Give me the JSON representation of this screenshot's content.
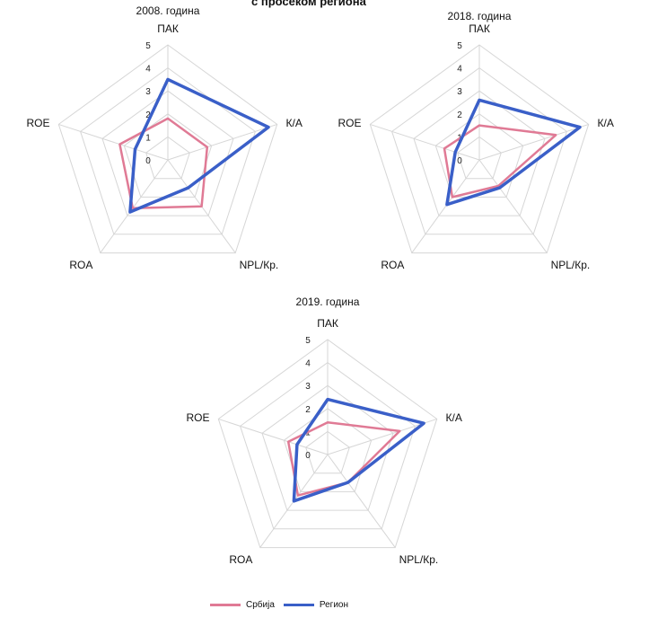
{
  "figure": {
    "title_fragment": "с просеком региона"
  },
  "colors": {
    "serbia": "#e07a95",
    "region": "#3a5fc8",
    "grid": "#d6d6d6"
  },
  "legend": {
    "serbia_label": "Србија",
    "region_label": "Регион"
  },
  "chart_data": [
    {
      "type": "radar",
      "title": "2008. година",
      "axes": [
        "ПАК",
        "К/А",
        "NPL/Кр.",
        "ROA",
        "ROE"
      ],
      "ticks": [
        "0",
        "1",
        "2",
        "3",
        "4",
        "5"
      ],
      "rlim": [
        0,
        5
      ],
      "series": [
        {
          "name": "Србија",
          "values": [
            1.8,
            1.8,
            2.5,
            2.6,
            2.2
          ]
        },
        {
          "name": "Регион",
          "values": [
            3.5,
            4.6,
            1.5,
            2.8,
            1.5
          ]
        }
      ]
    },
    {
      "type": "radar",
      "title": "2018. година",
      "axes": [
        "ПАК",
        "К/А",
        "NPL/Кр.",
        "ROA",
        "ROE"
      ],
      "ticks": [
        "0",
        "1",
        "2",
        "3",
        "4",
        "5"
      ],
      "rlim": [
        0,
        5
      ],
      "series": [
        {
          "name": "Србија",
          "values": [
            1.5,
            3.5,
            1.4,
            2.0,
            1.6
          ]
        },
        {
          "name": "Регион",
          "values": [
            2.6,
            4.6,
            1.5,
            2.4,
            1.1
          ]
        }
      ]
    },
    {
      "type": "radar",
      "title": "2019. година",
      "axes": [
        "ПАК",
        "К/А",
        "NPL/Кр.",
        "ROA",
        "ROE"
      ],
      "ticks": [
        "0",
        "1",
        "2",
        "3",
        "4",
        "5"
      ],
      "rlim": [
        0,
        5
      ],
      "series": [
        {
          "name": "Србија",
          "values": [
            1.4,
            3.3,
            1.5,
            2.2,
            1.8
          ]
        },
        {
          "name": "Регион",
          "values": [
            2.4,
            4.4,
            1.5,
            2.5,
            1.4
          ]
        }
      ]
    }
  ]
}
